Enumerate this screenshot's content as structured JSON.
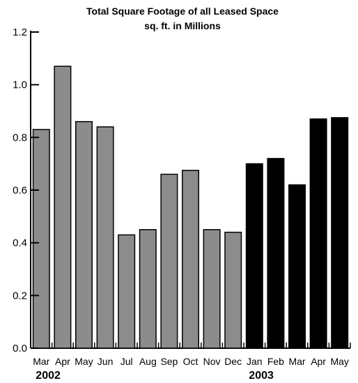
{
  "chart_data": {
    "type": "bar",
    "title": "Total Square Footage of all Leased Space",
    "subtitle": "sq. ft. in Millions",
    "xlabel": "",
    "ylabel": "",
    "ylim": [
      0,
      1.2
    ],
    "yticks": [
      "0.0",
      "0.2",
      "0.4",
      "0.6",
      "0.8",
      "1.0",
      "1.2"
    ],
    "grid": false,
    "categories": [
      "Mar",
      "Apr",
      "May",
      "Jun",
      "Jul",
      "Aug",
      "Sep",
      "Oct",
      "Nov",
      "Dec",
      "Jan",
      "Feb",
      "Mar",
      "Apr",
      "May"
    ],
    "values": [
      0.83,
      1.07,
      0.86,
      0.84,
      0.43,
      0.45,
      0.66,
      0.675,
      0.45,
      0.44,
      0.7,
      0.72,
      0.62,
      0.87,
      0.875
    ],
    "year_labels": [
      {
        "label": "2002",
        "start_index": 0
      },
      {
        "label": "2003",
        "start_index": 10
      }
    ],
    "colors": {
      "2002": "#8c8c8c",
      "2003": "#000000",
      "outline": "#000000"
    }
  }
}
